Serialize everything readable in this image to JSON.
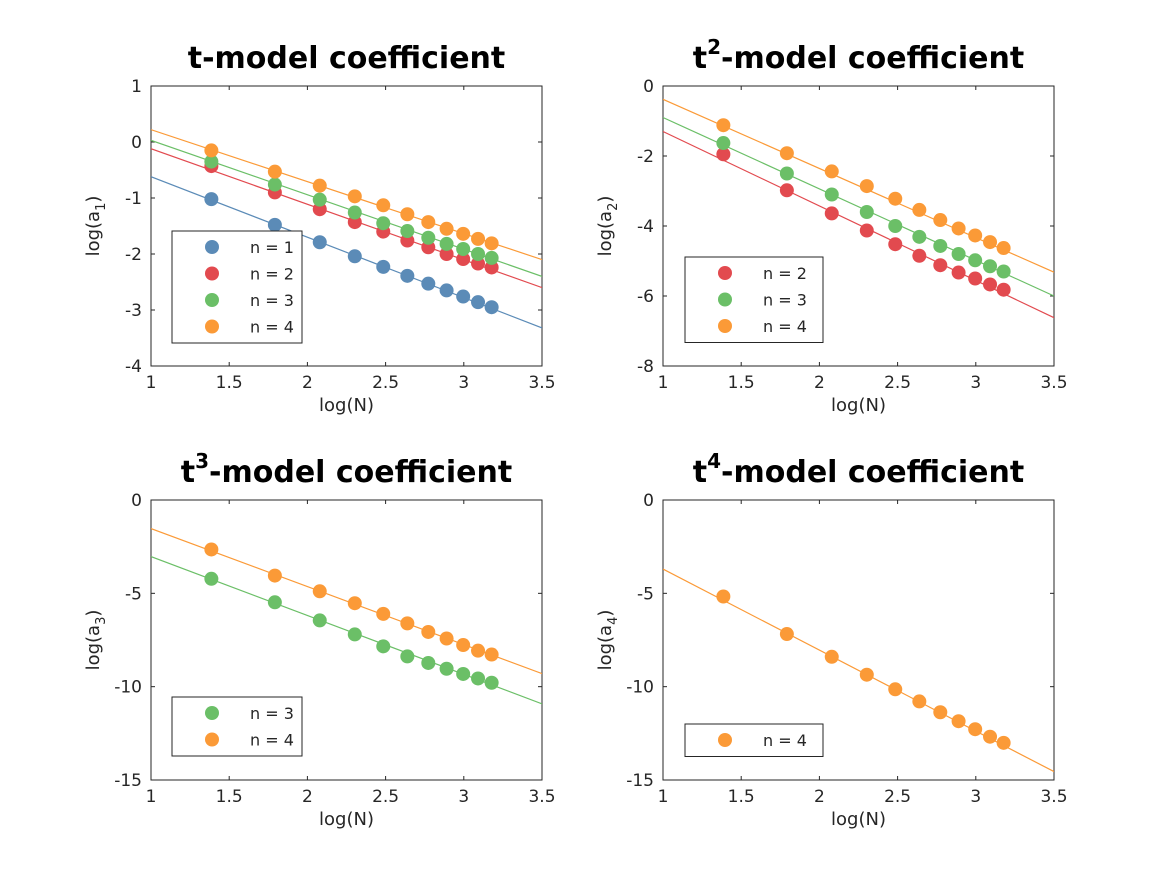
{
  "figure": {
    "xlabel": "log(N)"
  },
  "colors": {
    "n1": "#5b8bb7",
    "n2": "#e24a4f",
    "n3": "#6bbf67",
    "n4": "#fb9a37"
  },
  "chart_data": [
    {
      "type": "scatter",
      "title": "t-model coefficient",
      "title_sup": "",
      "title_rest": "t-model coefficient",
      "xlabel": "log(N)",
      "ylabel": "log(a1)",
      "ylabel_base": "log(a",
      "ylabel_sub": "1",
      "xlim": [
        1,
        3.5
      ],
      "ylim": [
        -4,
        1
      ],
      "xticks": [
        "1",
        "1.5",
        "2",
        "2.5",
        "3",
        "3.5"
      ],
      "yticks": [
        "-4",
        "-3",
        "-2",
        "-1",
        "0",
        "1"
      ],
      "grid": false,
      "legend_position": "lower-left",
      "x": [
        1.386,
        1.792,
        2.079,
        2.303,
        2.485,
        2.639,
        2.773,
        2.89,
        2.996,
        3.091,
        3.178
      ],
      "series": [
        {
          "name": "n = 1",
          "color": "#5b8bb7",
          "y": [
            -1.02,
            -1.48,
            -1.79,
            -2.04,
            -2.23,
            -2.39,
            -2.53,
            -2.65,
            -2.76,
            -2.86,
            -2.95
          ],
          "fit": [
            [
              1,
              -0.62
            ],
            [
              3.5,
              -3.32
            ]
          ]
        },
        {
          "name": "n = 2",
          "color": "#e24a4f",
          "y": [
            -0.43,
            -0.9,
            -1.2,
            -1.43,
            -1.6,
            -1.76,
            -1.88,
            -2.0,
            -2.09,
            -2.17,
            -2.24
          ],
          "fit": [
            [
              1,
              -0.12
            ],
            [
              3.5,
              -2.6
            ]
          ]
        },
        {
          "name": "n = 3",
          "color": "#6bbf67",
          "y": [
            -0.35,
            -0.76,
            -1.03,
            -1.26,
            -1.45,
            -1.59,
            -1.71,
            -1.82,
            -1.91,
            -2.0,
            -2.07
          ],
          "fit": [
            [
              1,
              0.03
            ],
            [
              3.5,
              -2.4
            ]
          ]
        },
        {
          "name": "n = 4",
          "color": "#fb9a37",
          "y": [
            -0.15,
            -0.53,
            -0.78,
            -0.97,
            -1.13,
            -1.29,
            -1.43,
            -1.55,
            -1.64,
            -1.73,
            -1.81
          ],
          "fit": [
            [
              1,
              0.22
            ],
            [
              3.5,
              -2.1
            ]
          ]
        }
      ]
    },
    {
      "type": "scatter",
      "title": "t2-model coefficient",
      "title_sup": "2",
      "title_rest": "-model coefficient",
      "xlabel": "log(N)",
      "ylabel": "log(a2)",
      "ylabel_base": "log(a",
      "ylabel_sub": "2",
      "xlim": [
        1,
        3.5
      ],
      "ylim": [
        -8,
        0
      ],
      "xticks": [
        "1",
        "1.5",
        "2",
        "2.5",
        "3",
        "3.5"
      ],
      "yticks": [
        "-8",
        "-6",
        "-4",
        "-2",
        "0"
      ],
      "grid": false,
      "legend_position": "lower-left",
      "x": [
        1.386,
        1.792,
        2.079,
        2.303,
        2.485,
        2.639,
        2.773,
        2.89,
        2.996,
        3.091,
        3.178
      ],
      "series": [
        {
          "name": "n = 2",
          "color": "#e24a4f",
          "y": [
            -1.95,
            -2.98,
            -3.64,
            -4.13,
            -4.52,
            -4.85,
            -5.12,
            -5.33,
            -5.5,
            -5.67,
            -5.82
          ],
          "fit": [
            [
              1,
              -1.3
            ],
            [
              3.5,
              -6.62
            ]
          ]
        },
        {
          "name": "n = 3",
          "color": "#6bbf67",
          "y": [
            -1.63,
            -2.5,
            -3.1,
            -3.6,
            -4.0,
            -4.31,
            -4.57,
            -4.8,
            -4.98,
            -5.15,
            -5.3
          ],
          "fit": [
            [
              1,
              -0.9
            ],
            [
              3.5,
              -6.0
            ]
          ]
        },
        {
          "name": "n = 4",
          "color": "#fb9a37",
          "y": [
            -1.12,
            -1.92,
            -2.44,
            -2.86,
            -3.22,
            -3.54,
            -3.83,
            -4.07,
            -4.27,
            -4.46,
            -4.63
          ],
          "fit": [
            [
              1,
              -0.38
            ],
            [
              3.5,
              -5.32
            ]
          ]
        }
      ]
    },
    {
      "type": "scatter",
      "title": "t3-model coefficient",
      "title_sup": "3",
      "title_rest": "-model coefficient",
      "xlabel": "log(N)",
      "ylabel": "log(a3)",
      "ylabel_base": "log(a",
      "ylabel_sub": "3",
      "xlim": [
        1,
        3.5
      ],
      "ylim": [
        -15,
        0
      ],
      "xticks": [
        "1",
        "1.5",
        "2",
        "2.5",
        "3",
        "3.5"
      ],
      "yticks": [
        "-15",
        "-10",
        "-5",
        "0"
      ],
      "grid": false,
      "legend_position": "lower-left",
      "x": [
        1.386,
        1.792,
        2.079,
        2.303,
        2.485,
        2.639,
        2.773,
        2.89,
        2.996,
        3.091,
        3.178
      ],
      "series": [
        {
          "name": "n = 3",
          "color": "#6bbf67",
          "y": [
            -4.22,
            -5.48,
            -6.45,
            -7.2,
            -7.84,
            -8.38,
            -8.73,
            -9.04,
            -9.32,
            -9.56,
            -9.79
          ],
          "fit": [
            [
              1,
              -3.03
            ],
            [
              3.5,
              -10.92
            ]
          ]
        },
        {
          "name": "n = 4",
          "color": "#fb9a37",
          "y": [
            -2.65,
            -4.05,
            -4.89,
            -5.53,
            -6.1,
            -6.61,
            -7.07,
            -7.42,
            -7.77,
            -8.07,
            -8.28
          ],
          "fit": [
            [
              1,
              -1.53
            ],
            [
              3.5,
              -9.3
            ]
          ]
        }
      ]
    },
    {
      "type": "scatter",
      "title": "t4-model coefficient",
      "title_sup": "4",
      "title_rest": "-model coefficient",
      "xlabel": "log(N)",
      "ylabel": "log(a4)",
      "ylabel_base": "log(a",
      "ylabel_sub": "4",
      "xlim": [
        1,
        3.5
      ],
      "ylim": [
        -15,
        0
      ],
      "xticks": [
        "1",
        "1.5",
        "2",
        "2.5",
        "3",
        "3.5"
      ],
      "yticks": [
        "-15",
        "-10",
        "-5",
        "0"
      ],
      "grid": false,
      "legend_position": "lower-left",
      "x": [
        1.386,
        1.792,
        2.079,
        2.303,
        2.485,
        2.639,
        2.773,
        2.89,
        2.996,
        3.091,
        3.178
      ],
      "series": [
        {
          "name": "n = 4",
          "color": "#fb9a37",
          "y": [
            -5.17,
            -7.18,
            -8.4,
            -9.36,
            -10.14,
            -10.79,
            -11.37,
            -11.85,
            -12.28,
            -12.68,
            -13.01
          ],
          "fit": [
            [
              1,
              -3.7
            ],
            [
              3.5,
              -14.55
            ]
          ]
        }
      ]
    }
  ]
}
